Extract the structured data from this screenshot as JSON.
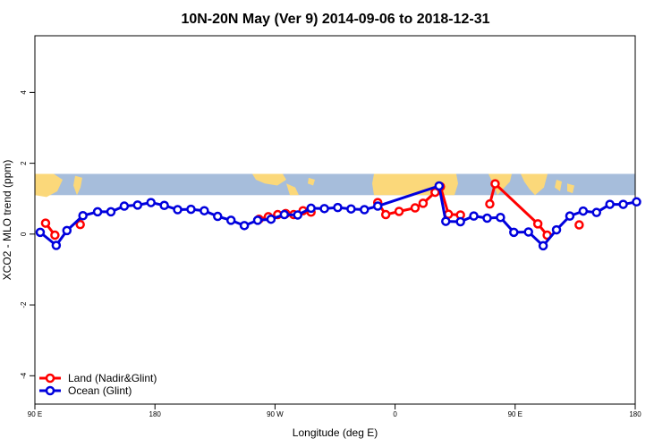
{
  "chart_data": {
    "type": "line",
    "title": "10N-20N May (Ver 9)   2014-09-06 to 2018-12-31",
    "xlabel": "Longitude (deg E)",
    "ylabel": "XCO2 - MLO trend (ppm)",
    "x_ticks": [
      {
        "value": 90,
        "label": "90 E"
      },
      {
        "value": 180,
        "label": "180"
      },
      {
        "value": 270,
        "label": "90 W"
      },
      {
        "value": 360,
        "label": "0"
      },
      {
        "value": 450,
        "label": "90 E"
      },
      {
        "value": 540,
        "label": "180"
      }
    ],
    "y_ticks": [
      {
        "value": -4,
        "label": "-4"
      },
      {
        "value": -2,
        "label": "-2"
      },
      {
        "value": 0,
        "label": "0"
      },
      {
        "value": 2,
        "label": "2"
      },
      {
        "value": 4,
        "label": "4"
      }
    ],
    "xlim": [
      90,
      540
    ],
    "ylim": [
      -4.8,
      5.6
    ],
    "land_band": [
      1.1,
      1.7
    ],
    "legend_position": "bottom-left",
    "colors": {
      "land": "#ff0000",
      "ocean": "#0000dd",
      "map_ocean": "#a6bddb",
      "map_land": "#fbd87a"
    },
    "series": [
      {
        "name": "Land (Nadir&Glint)",
        "key": "land",
        "segments": [
          [
            [
              98,
              0.31
            ],
            [
              105,
              -0.03
            ]
          ],
          [
            [
              124,
              0.27
            ]
          ],
          [
            [
              258,
              0.42
            ],
            [
              265,
              0.49
            ],
            [
              272,
              0.55
            ],
            [
              278,
              0.58
            ],
            [
              284,
              0.55
            ],
            [
              291,
              0.66
            ],
            [
              297,
              0.62
            ]
          ],
          [
            [
              347,
              0.89
            ],
            [
              353,
              0.55
            ],
            [
              363,
              0.64
            ],
            [
              375,
              0.74
            ],
            [
              381,
              0.87
            ],
            [
              390,
              1.18
            ],
            [
              394,
              1.34
            ],
            [
              400,
              0.56
            ],
            [
              409,
              0.54
            ]
          ],
          [
            [
              431,
              0.85
            ],
            [
              435,
              1.42
            ],
            [
              467,
              0.29
            ],
            [
              474,
              -0.03
            ]
          ],
          [
            [
              498,
              0.26
            ]
          ]
        ]
      },
      {
        "name": "Ocean (Glint)",
        "key": "ocean",
        "points": [
          [
            94,
            0.05
          ],
          [
            106,
            -0.32
          ],
          [
            114,
            0.1
          ],
          [
            126,
            0.52
          ],
          [
            137,
            0.63
          ],
          [
            147,
            0.63
          ],
          [
            157,
            0.79
          ],
          [
            167,
            0.82
          ],
          [
            177,
            0.89
          ],
          [
            187,
            0.81
          ],
          [
            197,
            0.69
          ],
          [
            207,
            0.7
          ],
          [
            217,
            0.66
          ],
          [
            227,
            0.5
          ],
          [
            237,
            0.39
          ],
          [
            247,
            0.24
          ],
          [
            257,
            0.39
          ],
          [
            267,
            0.42
          ],
          [
            277,
            0.55
          ],
          [
            287,
            0.54
          ],
          [
            297,
            0.73
          ],
          [
            307,
            0.72
          ],
          [
            317,
            0.75
          ],
          [
            327,
            0.71
          ],
          [
            337,
            0.69
          ],
          [
            347,
            0.79
          ],
          [
            393,
            1.36
          ],
          [
            398,
            0.36
          ],
          [
            409,
            0.35
          ],
          [
            419,
            0.51
          ],
          [
            429,
            0.45
          ],
          [
            439,
            0.47
          ],
          [
            449,
            0.05
          ],
          [
            460,
            0.06
          ],
          [
            471,
            -0.33
          ],
          [
            481,
            0.12
          ],
          [
            491,
            0.51
          ],
          [
            501,
            0.65
          ],
          [
            511,
            0.61
          ],
          [
            521,
            0.84
          ],
          [
            531,
            0.84
          ],
          [
            541,
            0.91
          ]
        ]
      }
    ]
  }
}
